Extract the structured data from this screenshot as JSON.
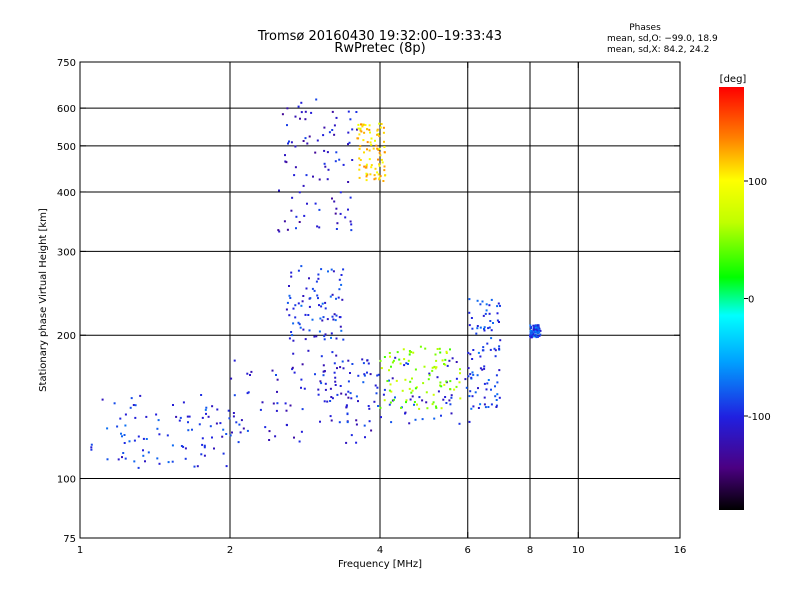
{
  "chart_data": {
    "type": "scatter",
    "title": "Tromsø 20160430 19:32:00–19:33:43",
    "subtitle": "RwPretec (8p)",
    "xlabel": "Frequency [MHz]",
    "ylabel": "Stationary phase Virtual Height [km]",
    "x_scale": "log",
    "y_scale": "log",
    "xlim": [
      1,
      16
    ],
    "ylim": [
      75,
      750
    ],
    "x_ticks": [
      1,
      2,
      4,
      6,
      8,
      10,
      16
    ],
    "x_tick_labels": [
      "1",
      "2",
      "4",
      "6",
      "8",
      "10",
      "16"
    ],
    "y_ticks": [
      75,
      100,
      200,
      300,
      400,
      500,
      600,
      750
    ],
    "y_tick_labels": [
      "75",
      "100",
      "200",
      "300",
      "400",
      "500",
      "600",
      "750"
    ],
    "x_grid": [
      2,
      4,
      6,
      8,
      10
    ],
    "y_grid": [
      100,
      200,
      300,
      400,
      500,
      600
    ],
    "phase_stats": {
      "heading": "Phases",
      "line_o": "mean, sd,O: −99.0, 18.9",
      "line_x": "mean, sd,X:  84.2, 24.2"
    },
    "colorbar": {
      "label": "[deg]",
      "range": [
        -180,
        180
      ],
      "ticks": [
        100,
        0,
        -100
      ],
      "tick_labels": [
        "100",
        "0",
        "-100"
      ]
    },
    "series": [
      {
        "color_by": "phase_deg",
        "clusters": [
          {
            "x_range": [
              1.05,
              2.0
            ],
            "y_range": [
              105,
              150
            ],
            "phase": -95
          },
          {
            "x_range": [
              2.0,
              4.0
            ],
            "y_range": [
              118,
              180
            ],
            "phase": -105
          },
          {
            "x_range": [
              2.5,
              3.6
            ],
            "y_range": [
              330,
              630
            ],
            "phase": -110
          },
          {
            "x_range": [
              2.6,
              3.4
            ],
            "y_range": [
              180,
              280
            ],
            "phase": -95
          },
          {
            "x_range": [
              3.0,
              6.3
            ],
            "y_range": [
              130,
              180
            ],
            "phase": -100
          },
          {
            "x_range": [
              4.0,
              5.8
            ],
            "y_range": [
              140,
              190
            ],
            "phase": 55
          },
          {
            "x_range": [
              6.0,
              7.0
            ],
            "y_range": [
              140,
              240
            ],
            "phase": -90
          },
          {
            "x_range": [
              8.0,
              8.4
            ],
            "y_range": [
              198,
              210
            ],
            "phase": -85
          },
          {
            "x_range": [
              3.6,
              4.1
            ],
            "y_range": [
              420,
              560
            ],
            "phase": 110
          }
        ]
      }
    ]
  }
}
